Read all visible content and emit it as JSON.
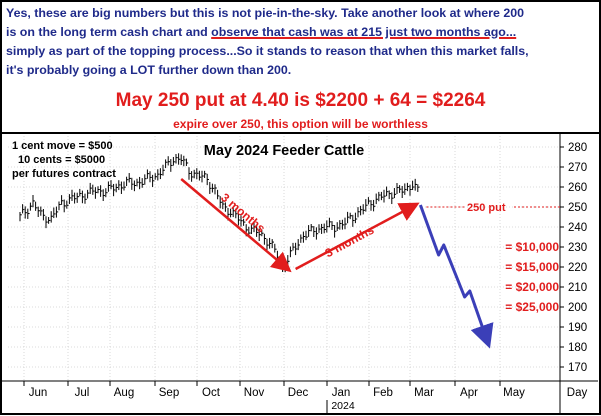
{
  "header": {
    "line1": "Yes, these are big numbers but this is not pie-in-the-sky.  Take another look at where 200",
    "line2_a": "is on the long term cash chart and ",
    "line2_b": "observe that cash was at 215 just two months ago...",
    "line3": "simply as part of the topping process...So it stands to reason that when this market falls,",
    "line4": "it's probably going a LOT further down than 200.",
    "headline": "May 250 put at 4.40 is $2200 + 64 = $2264",
    "subnote": "expire over 250, this option will be worthless"
  },
  "legend_notes": [
    "1 cent move = $500",
    "10 cents = $5000",
    "per futures contract"
  ],
  "chart_data": {
    "type": "bar",
    "title": "May 2024 Feeder Cattle",
    "x_labels": [
      "Jun",
      "Jul",
      "Aug",
      "Sep",
      "Oct",
      "Nov",
      "Dec",
      "Jan",
      "Feb",
      "Mar",
      "Apr",
      "May",
      "Day"
    ],
    "x_sublabel": "2024",
    "y_ticks": [
      170,
      180,
      190,
      200,
      210,
      220,
      230,
      240,
      250,
      260,
      270,
      280
    ],
    "ylim": [
      163,
      285
    ],
    "price_path": [
      [
        0,
        245
      ],
      [
        5,
        252
      ],
      [
        8,
        246
      ],
      [
        12,
        244
      ],
      [
        16,
        252
      ],
      [
        20,
        254
      ],
      [
        24,
        256
      ],
      [
        29,
        258
      ],
      [
        33,
        258
      ],
      [
        37,
        260
      ],
      [
        41,
        262
      ],
      [
        45,
        262
      ],
      [
        49,
        264
      ],
      [
        53,
        266
      ],
      [
        56,
        270
      ],
      [
        59,
        274
      ],
      [
        62,
        274
      ],
      [
        65,
        268
      ],
      [
        68,
        266
      ],
      [
        72,
        264
      ],
      [
        75,
        258
      ],
      [
        78,
        250
      ],
      [
        81,
        248
      ],
      [
        84,
        244
      ],
      [
        87,
        240
      ],
      [
        90,
        238
      ],
      [
        93,
        236
      ],
      [
        96,
        232
      ],
      [
        99,
        226
      ],
      [
        101,
        220
      ],
      [
        103,
        224
      ],
      [
        106,
        230
      ],
      [
        109,
        236
      ],
      [
        113,
        238
      ],
      [
        117,
        240
      ],
      [
        121,
        240
      ],
      [
        125,
        242
      ],
      [
        129,
        246
      ],
      [
        133,
        250
      ],
      [
        137,
        254
      ],
      [
        141,
        256
      ],
      [
        145,
        258
      ],
      [
        148,
        258
      ],
      [
        151,
        262
      ],
      [
        153,
        258
      ]
    ],
    "annotations": [
      {
        "text": "3 months",
        "color": "#e11d1d",
        "from": [
          62,
          264
        ],
        "to": [
          103,
          219
        ]
      },
      {
        "text": "3 months",
        "color": "#e11d1d",
        "from": [
          106,
          219
        ],
        "to": [
          152,
          251
        ]
      },
      {
        "text": "250 put",
        "color": "#e11d1d",
        "y": 250
      },
      {
        "text": "= $10,000",
        "color": "#e11d1d",
        "y": 230
      },
      {
        "text": "= $15,000",
        "color": "#e11d1d",
        "y": 220
      },
      {
        "text": "= $20,000",
        "color": "#e11d1d",
        "y": 210
      },
      {
        "text": "= $25,000",
        "color": "#e11d1d",
        "y": 200
      }
    ],
    "projection": {
      "color": "#3b3fb8",
      "points": [
        [
          154,
          251
        ],
        [
          161,
          226
        ],
        [
          163,
          231
        ],
        [
          171,
          205
        ],
        [
          173,
          208
        ],
        [
          180,
          182
        ]
      ]
    }
  },
  "colors": {
    "red": "#e11d1d",
    "blue_text": "#1f2a8a",
    "blue_arrow": "#3b3fb8"
  }
}
